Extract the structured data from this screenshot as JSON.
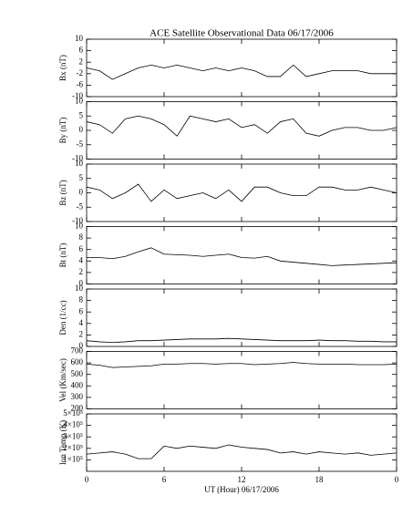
{
  "title": "ACE Satellite Observational Data   06/17/2006",
  "xlabel": "UT (Hour)   06/17/2006",
  "chart_data": [
    {
      "type": "line",
      "ylabel": "Bx (nT)",
      "color": "#000000",
      "x": [
        0,
        1,
        2,
        3,
        4,
        5,
        6,
        7,
        8,
        9,
        10,
        11,
        12,
        13,
        14,
        15,
        16,
        17,
        18,
        19,
        20,
        21,
        22,
        23,
        24
      ],
      "values": [
        0,
        -1,
        -4,
        -2,
        0,
        1,
        0,
        1,
        0,
        -1,
        0,
        -1,
        0,
        -1,
        -3,
        -3,
        1,
        -3,
        -2,
        -1,
        -1,
        -1,
        -2,
        -2,
        -2
      ],
      "ylim": [
        -10,
        10
      ],
      "yticks": [
        -10,
        -6,
        -2,
        2,
        6,
        10
      ]
    },
    {
      "type": "line",
      "ylabel": "By (nT)",
      "color": "#000000",
      "x": [
        0,
        1,
        2,
        3,
        4,
        5,
        6,
        7,
        8,
        9,
        10,
        11,
        12,
        13,
        14,
        15,
        16,
        17,
        18,
        19,
        20,
        21,
        22,
        23,
        24
      ],
      "values": [
        3,
        2,
        -1,
        4,
        5,
        4,
        2,
        -2,
        5,
        4,
        3,
        4,
        1,
        2,
        -1,
        3,
        4,
        -1,
        -2,
        0,
        1,
        1,
        0,
        0,
        1
      ],
      "ylim": [
        -10,
        10
      ],
      "yticks": [
        -10,
        -5,
        0,
        5,
        10
      ]
    },
    {
      "type": "line",
      "ylabel": "Bz (nT)",
      "color": "#000000",
      "x": [
        0,
        1,
        2,
        3,
        4,
        5,
        6,
        7,
        8,
        9,
        10,
        11,
        12,
        13,
        14,
        15,
        16,
        17,
        18,
        19,
        20,
        21,
        22,
        23,
        24
      ],
      "values": [
        2,
        1,
        -2,
        0,
        3,
        -3,
        1,
        -2,
        -1,
        0,
        -2,
        1,
        -3,
        2,
        2,
        0,
        -1,
        -1,
        2,
        2,
        1,
        1,
        2,
        1,
        0
      ],
      "ylim": [
        -10,
        10
      ],
      "yticks": [
        -10,
        -5,
        0,
        5,
        10
      ]
    },
    {
      "type": "line",
      "ylabel": "Bt (nT)",
      "color": "#000000",
      "x": [
        0,
        1,
        2,
        3,
        4,
        5,
        6,
        7,
        8,
        9,
        10,
        11,
        12,
        13,
        14,
        15,
        16,
        17,
        18,
        19,
        20,
        21,
        22,
        23,
        24
      ],
      "values": [
        4.6,
        4.6,
        4.4,
        4.8,
        5.6,
        6.3,
        5.2,
        5.1,
        5.0,
        4.8,
        5.0,
        5.2,
        4.6,
        4.5,
        4.8,
        4.0,
        3.8,
        3.6,
        3.4,
        3.2,
        3.3,
        3.4,
        3.5,
        3.6,
        3.7
      ],
      "ylim": [
        0,
        10
      ],
      "yticks": [
        0,
        2,
        4,
        6,
        8,
        10
      ]
    },
    {
      "type": "line",
      "ylabel": "Den (1/cc)",
      "color": "#000000",
      "x": [
        0,
        1,
        2,
        3,
        4,
        5,
        6,
        7,
        8,
        9,
        10,
        11,
        12,
        13,
        14,
        15,
        16,
        17,
        18,
        19,
        20,
        21,
        22,
        23,
        24
      ],
      "values": [
        1,
        0.8,
        0.7,
        0.8,
        1,
        1,
        1.1,
        1.2,
        1.3,
        1.3,
        1.3,
        1.4,
        1.3,
        1.2,
        1.1,
        1,
        1,
        1,
        1.1,
        1,
        1,
        0.9,
        0.9,
        0.8,
        0.8
      ],
      "ylim": [
        0,
        10
      ],
      "yticks": [
        0,
        2,
        4,
        6,
        8,
        10
      ]
    },
    {
      "type": "line",
      "ylabel": "Vel (Km/sec)",
      "color": "#000000",
      "x": [
        0,
        1,
        2,
        3,
        4,
        5,
        6,
        7,
        8,
        9,
        10,
        11,
        12,
        13,
        14,
        15,
        16,
        17,
        18,
        19,
        20,
        21,
        22,
        23,
        24
      ],
      "values": [
        590,
        580,
        560,
        565,
        570,
        575,
        590,
        590,
        595,
        595,
        590,
        595,
        595,
        585,
        590,
        595,
        605,
        595,
        590,
        590,
        590,
        585,
        585,
        585,
        590
      ],
      "ylim": [
        200,
        700
      ],
      "yticks": [
        200,
        300,
        400,
        500,
        600,
        700
      ]
    },
    {
      "type": "line",
      "ylabel": "Ion Temp (K)",
      "color": "#000000",
      "x": [
        0,
        1,
        2,
        3,
        4,
        5,
        6,
        7,
        8,
        9,
        10,
        11,
        12,
        13,
        14,
        15,
        16,
        17,
        18,
        19,
        20,
        21,
        22,
        23,
        24
      ],
      "values": [
        150000,
        160000,
        170000,
        150000,
        110000,
        110000,
        220000,
        200000,
        220000,
        210000,
        200000,
        230000,
        210000,
        200000,
        190000,
        160000,
        170000,
        150000,
        170000,
        160000,
        150000,
        160000,
        140000,
        150000,
        160000
      ],
      "ylim": [
        0,
        500000
      ],
      "yticks": [
        {
          "value": 100000,
          "label": "1×10⁵"
        },
        {
          "value": 200000,
          "label": "2×10⁵"
        },
        {
          "value": 300000,
          "label": "3×10⁵"
        },
        {
          "value": 400000,
          "label": "4×10⁵"
        },
        {
          "value": 500000,
          "label": "5×10⁵"
        }
      ],
      "xlim": [
        0,
        24
      ],
      "xticks": [
        0,
        6,
        12,
        18,
        {
          "value": 24,
          "label": "0"
        }
      ]
    }
  ]
}
